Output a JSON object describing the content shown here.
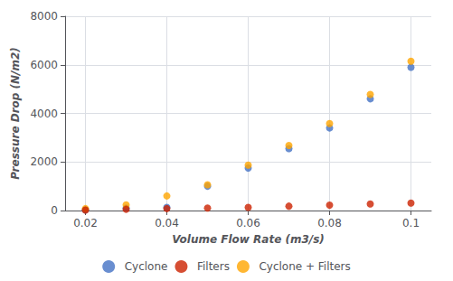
{
  "chart_data": {
    "type": "scatter",
    "xlabel": "Volume Flow Rate (m3/s)",
    "ylabel": "Pressure Drop (N/m2)",
    "x": [
      0.02,
      0.03,
      0.04,
      0.05,
      0.06,
      0.07,
      0.08,
      0.09,
      0.1
    ],
    "series": [
      {
        "name": "Cyclone",
        "color": "#4472C4",
        "values": [
          30,
          100,
          130,
          1000,
          1750,
          2550,
          3400,
          4600,
          5900
        ]
      },
      {
        "name": "Filters",
        "color": "#CC2200",
        "values": [
          20,
          50,
          80,
          100,
          130,
          180,
          220,
          270,
          310
        ]
      },
      {
        "name": "Cyclone + Filters",
        "color": "#FFA500",
        "values": [
          80,
          230,
          600,
          1060,
          1870,
          2680,
          3580,
          4780,
          6150
        ]
      }
    ],
    "xlim": [
      0.015,
      0.105
    ],
    "xticks": [
      0.02,
      0.04,
      0.06,
      0.08,
      0.1
    ],
    "ylim": [
      0,
      8000
    ],
    "yticks": [
      0,
      2000,
      4000,
      6000,
      8000
    ],
    "grid": true,
    "legend": "bottom"
  }
}
